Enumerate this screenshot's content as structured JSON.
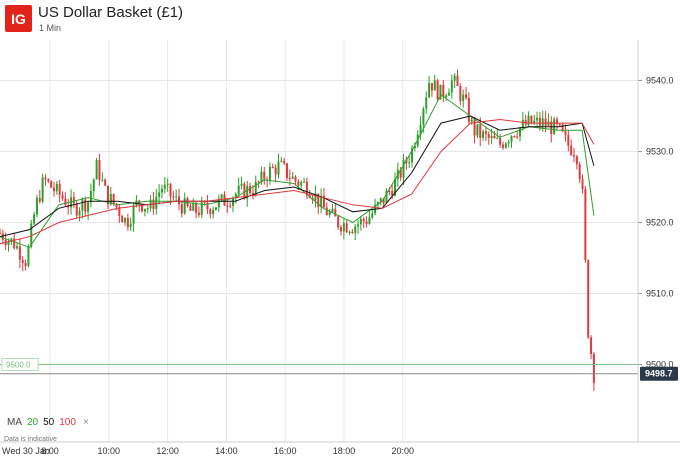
{
  "header": {
    "logo": "IG",
    "title": "US Dollar Basket (£1)",
    "interval": "1 Min"
  },
  "legend": {
    "prefix": "MA",
    "ma20": "20",
    "ma50": "50",
    "ma100": "100",
    "close": "×"
  },
  "note": "Data is indicative",
  "date_label": "Wed 30 Jan",
  "colors": {
    "up": "#2ca02c",
    "down": "#e0393e",
    "ma20": "#2ca02c",
    "ma50": "#111111",
    "ma100": "#e0393e",
    "grid": "#e6e6e6",
    "price_tag": "#2b3a4a"
  },
  "chart_data": {
    "type": "line",
    "x_ticks": [
      "8:00",
      "10:00",
      "12:00",
      "14:00",
      "16:00",
      "18:00",
      "20:00"
    ],
    "y_ticks": [
      "9540.0",
      "9530.0",
      "9520.0",
      "9510.0",
      "9500.0"
    ],
    "ylim": [
      9495,
      9545
    ],
    "hline_label": "9500.0",
    "hline_value": 9500.0,
    "last_price_label": "9498.7",
    "last_price": 9498.7,
    "series": [
      {
        "name": "Price",
        "points": [
          [
            0,
            9518.5
          ],
          [
            0.5,
            9517
          ],
          [
            0.9,
            9514.5
          ],
          [
            1.2,
            9522
          ],
          [
            1.5,
            9526
          ],
          [
            2,
            9524
          ],
          [
            2.5,
            9522
          ],
          [
            3,
            9523
          ],
          [
            3.3,
            9528
          ],
          [
            3.6,
            9524
          ],
          [
            4,
            9522
          ],
          [
            4.3,
            9520
          ],
          [
            4.7,
            9523
          ],
          [
            5.1,
            9522
          ],
          [
            5.5,
            9525
          ],
          [
            6,
            9523
          ],
          [
            6.5,
            9521.5
          ],
          [
            7,
            9522
          ],
          [
            7.6,
            9523
          ],
          [
            8,
            9524
          ],
          [
            8.7,
            9525
          ],
          [
            9.1,
            9527
          ],
          [
            9.5,
            9528
          ],
          [
            10,
            9526
          ],
          [
            10.5,
            9525
          ],
          [
            11,
            9522
          ],
          [
            11.5,
            9520
          ],
          [
            12,
            9519.5
          ],
          [
            12.5,
            9520.5
          ],
          [
            13,
            9523
          ],
          [
            13.5,
            9526
          ],
          [
            14,
            9530
          ],
          [
            14.3,
            9535
          ],
          [
            14.6,
            9540
          ],
          [
            15,
            9538
          ],
          [
            15.4,
            9540
          ],
          [
            15.8,
            9537
          ],
          [
            16.1,
            9533
          ],
          [
            16.5,
            9532
          ],
          [
            17,
            9531
          ],
          [
            17.5,
            9533
          ],
          [
            18,
            9534
          ],
          [
            18.5,
            9534
          ],
          [
            19,
            9533
          ],
          [
            19.3,
            9531
          ],
          [
            19.6,
            9530
          ],
          [
            19.8,
            9525
          ],
          [
            20,
            9505
          ],
          [
            20.2,
            9498.7
          ]
        ]
      },
      {
        "name": "MA 20",
        "points": [
          [
            0,
            9518
          ],
          [
            1,
            9516.5
          ],
          [
            2,
            9522.5
          ],
          [
            3,
            9523.5
          ],
          [
            4,
            9522.5
          ],
          [
            5,
            9523
          ],
          [
            6,
            9523
          ],
          [
            7,
            9522.5
          ],
          [
            8,
            9523.5
          ],
          [
            9,
            9526
          ],
          [
            10,
            9525.5
          ],
          [
            11,
            9522
          ],
          [
            12,
            9520
          ],
          [
            13,
            9523
          ],
          [
            14,
            9530
          ],
          [
            15,
            9538
          ],
          [
            16,
            9535
          ],
          [
            17,
            9532
          ],
          [
            18,
            9533.5
          ],
          [
            19,
            9533
          ],
          [
            19.8,
            9533
          ],
          [
            20.2,
            9521
          ]
        ]
      },
      {
        "name": "MA 50",
        "points": [
          [
            0,
            9518
          ],
          [
            1,
            9519
          ],
          [
            2,
            9522
          ],
          [
            3,
            9523
          ],
          [
            4,
            9523
          ],
          [
            5,
            9522.5
          ],
          [
            6,
            9523
          ],
          [
            7,
            9523
          ],
          [
            8,
            9523
          ],
          [
            9,
            9524.5
          ],
          [
            10,
            9525
          ],
          [
            11,
            9523.5
          ],
          [
            12,
            9521.5
          ],
          [
            13,
            9522
          ],
          [
            14,
            9527
          ],
          [
            15,
            9534
          ],
          [
            16,
            9535
          ],
          [
            17,
            9533
          ],
          [
            18,
            9533.5
          ],
          [
            19,
            9533.5
          ],
          [
            19.8,
            9534
          ],
          [
            20.2,
            9528
          ]
        ]
      },
      {
        "name": "MA 100",
        "points": [
          [
            0,
            9517
          ],
          [
            1,
            9518
          ],
          [
            2,
            9520
          ],
          [
            3,
            9521
          ],
          [
            4,
            9522
          ],
          [
            5,
            9522.5
          ],
          [
            6,
            9523
          ],
          [
            7,
            9523
          ],
          [
            8,
            9523.5
          ],
          [
            9,
            9524
          ],
          [
            10,
            9524.5
          ],
          [
            11,
            9523.5
          ],
          [
            12,
            9522.5
          ],
          [
            13,
            9522
          ],
          [
            14,
            9524
          ],
          [
            15,
            9530
          ],
          [
            16,
            9534
          ],
          [
            17,
            9534.5
          ],
          [
            18,
            9534
          ],
          [
            19,
            9534
          ],
          [
            19.8,
            9534
          ],
          [
            20.2,
            9531
          ]
        ]
      }
    ]
  }
}
